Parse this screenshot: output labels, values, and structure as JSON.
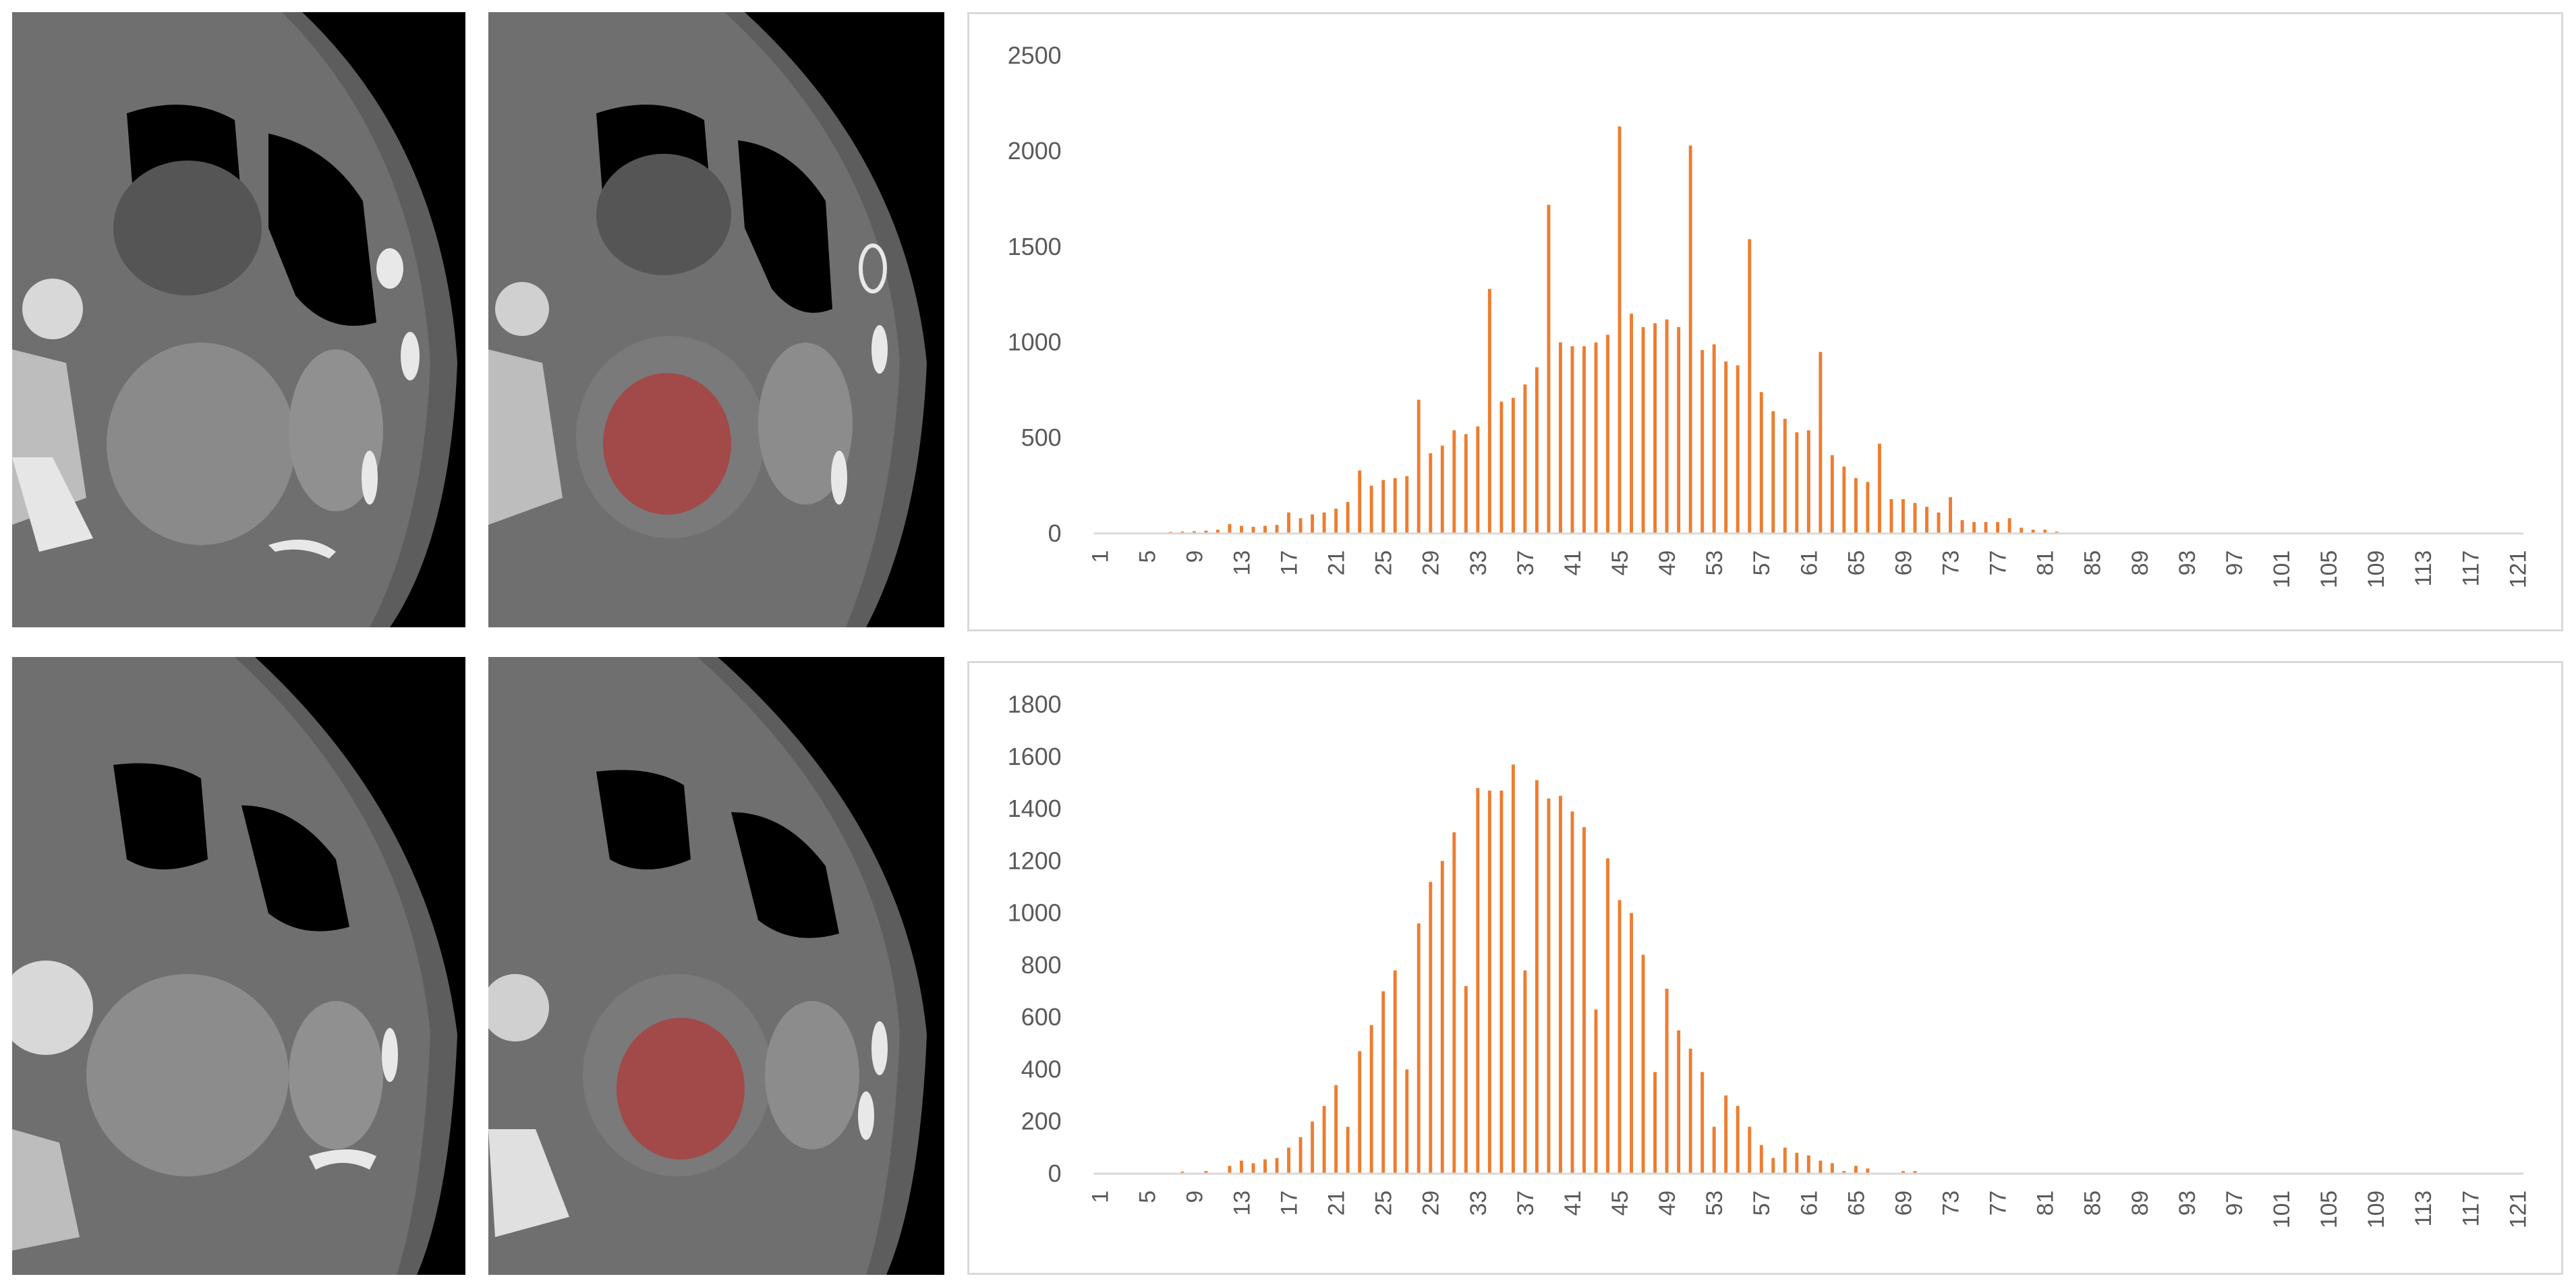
{
  "panels": [
    {
      "row": "top",
      "ct_raw_label": "axial-ct-slice",
      "ct_seg_label": "axial-ct-slice-with-roi"
    },
    {
      "row": "bottom",
      "ct_raw_label": "axial-ct-slice",
      "ct_seg_label": "axial-ct-slice-with-roi"
    }
  ],
  "colors": {
    "bar": "#ED7D31",
    "axis": "#D9D9D9",
    "tick_text": "#595959",
    "roi": "#B03A3A"
  },
  "chart_data": [
    {
      "type": "bar",
      "title": "",
      "xlabel": "",
      "ylabel": "",
      "ylim": [
        0,
        2500
      ],
      "yticks": [
        0,
        500,
        1000,
        1500,
        2000,
        2500
      ],
      "x_range": [
        1,
        121
      ],
      "x_tick_labels": [
        1,
        5,
        9,
        13,
        17,
        21,
        25,
        29,
        33,
        37,
        41,
        45,
        49,
        53,
        57,
        61,
        65,
        69,
        73,
        77,
        81,
        85,
        89,
        93,
        97,
        101,
        105,
        109,
        113,
        117,
        121
      ],
      "categories": [
        1,
        2,
        3,
        4,
        5,
        6,
        7,
        8,
        9,
        10,
        11,
        12,
        13,
        14,
        15,
        16,
        17,
        18,
        19,
        20,
        21,
        22,
        23,
        24,
        25,
        26,
        27,
        28,
        29,
        30,
        31,
        32,
        33,
        34,
        35,
        36,
        37,
        38,
        39,
        40,
        41,
        42,
        43,
        44,
        45,
        46,
        47,
        48,
        49,
        50,
        51,
        52,
        53,
        54,
        55,
        56,
        57,
        58,
        59,
        60,
        61,
        62,
        63,
        64,
        65,
        66,
        67,
        68,
        69,
        70,
        71,
        72,
        73,
        74,
        75,
        76,
        77,
        78,
        79,
        80,
        81,
        82,
        83,
        84,
        85
      ],
      "values": [
        0,
        0,
        0,
        0,
        5,
        5,
        8,
        10,
        12,
        15,
        20,
        50,
        40,
        35,
        40,
        45,
        110,
        80,
        100,
        110,
        130,
        165,
        330,
        250,
        280,
        290,
        300,
        700,
        420,
        460,
        540,
        520,
        560,
        1280,
        690,
        710,
        780,
        870,
        1720,
        1000,
        980,
        980,
        1000,
        1040,
        2130,
        1150,
        1080,
        1100,
        1120,
        1080,
        2030,
        960,
        990,
        900,
        880,
        1540,
        740,
        640,
        600,
        530,
        540,
        950,
        410,
        350,
        290,
        270,
        470,
        180,
        180,
        160,
        140,
        110,
        190,
        70,
        60,
        60,
        60,
        80,
        30,
        20,
        20,
        10,
        5,
        5,
        0
      ]
    },
    {
      "type": "bar",
      "title": "",
      "xlabel": "",
      "ylabel": "",
      "ylim": [
        0,
        1800
      ],
      "yticks": [
        0,
        200,
        400,
        600,
        800,
        1000,
        1200,
        1400,
        1600,
        1800
      ],
      "x_range": [
        1,
        121
      ],
      "x_tick_labels": [
        1,
        5,
        9,
        13,
        17,
        21,
        25,
        29,
        33,
        37,
        41,
        45,
        49,
        53,
        57,
        61,
        65,
        69,
        73,
        77,
        81,
        85,
        89,
        93,
        97,
        101,
        105,
        109,
        113,
        117,
        121
      ],
      "categories": [
        1,
        2,
        3,
        4,
        5,
        6,
        7,
        8,
        9,
        10,
        11,
        12,
        13,
        14,
        15,
        16,
        17,
        18,
        19,
        20,
        21,
        22,
        23,
        24,
        25,
        26,
        27,
        28,
        29,
        30,
        31,
        32,
        33,
        34,
        35,
        36,
        37,
        38,
        39,
        40,
        41,
        42,
        43,
        44,
        45,
        46,
        47,
        48,
        49,
        50,
        51,
        52,
        53,
        54,
        55,
        56,
        57,
        58,
        59,
        60,
        61,
        62,
        63,
        64,
        65,
        66,
        67,
        68,
        69,
        70,
        71,
        72,
        73
      ],
      "values": [
        0,
        0,
        0,
        0,
        0,
        0,
        0,
        8,
        0,
        10,
        0,
        30,
        50,
        40,
        55,
        60,
        100,
        140,
        200,
        260,
        340,
        180,
        470,
        570,
        700,
        780,
        400,
        960,
        1120,
        1200,
        1310,
        720,
        1480,
        1470,
        1470,
        1570,
        780,
        1510,
        1440,
        1450,
        1390,
        1330,
        630,
        1210,
        1050,
        1000,
        840,
        390,
        710,
        550,
        480,
        390,
        180,
        300,
        260,
        180,
        110,
        60,
        100,
        80,
        70,
        50,
        40,
        10,
        30,
        20,
        0,
        0,
        10,
        10,
        0,
        0,
        0
      ]
    }
  ]
}
